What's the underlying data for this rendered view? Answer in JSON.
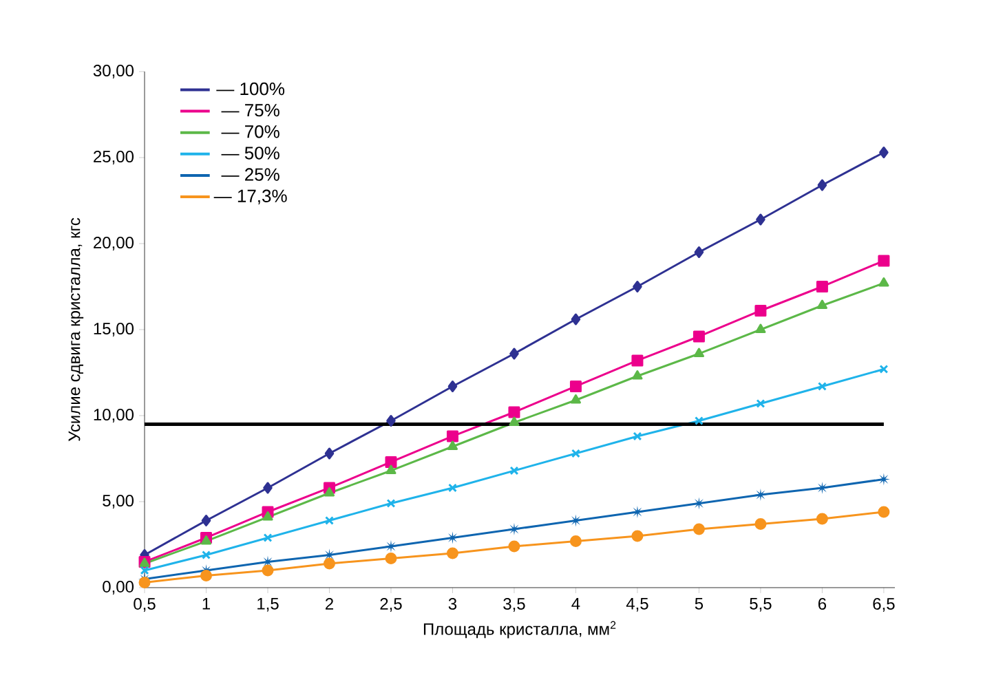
{
  "chart_data": {
    "type": "line",
    "xlabel": "Площадь кристалла, мм$^{2}$",
    "ylabel": "Усилие сдвига кристалла, кгс",
    "x": [
      0.5,
      1,
      1.5,
      2,
      2.5,
      3,
      3.5,
      4,
      4.5,
      5,
      5.5,
      6,
      6.5
    ],
    "series": [
      {
        "name": "— 100%",
        "color": "#2e3192",
        "marker": "diamond",
        "values": [
          1.9,
          3.9,
          5.8,
          7.8,
          9.7,
          11.7,
          13.6,
          15.6,
          17.5,
          19.5,
          21.4,
          23.4,
          25.3
        ]
      },
      {
        "name": "— 75%",
        "color": "#ec008c",
        "marker": "square",
        "values": [
          1.5,
          2.9,
          4.4,
          5.8,
          7.3,
          8.8,
          10.2,
          11.7,
          13.2,
          14.6,
          16.1,
          17.5,
          19.0
        ]
      },
      {
        "name": "— 70%",
        "color": "#5cb848",
        "marker": "triangle",
        "values": [
          1.4,
          2.7,
          4.1,
          5.5,
          6.8,
          8.2,
          9.6,
          10.9,
          12.3,
          13.6,
          15.0,
          16.4,
          17.7
        ]
      },
      {
        "name": "— 50%",
        "color": "#1fb3ea",
        "marker": "cross",
        "values": [
          1.0,
          1.9,
          2.9,
          3.9,
          4.9,
          5.8,
          6.8,
          7.8,
          8.8,
          9.7,
          10.7,
          11.7,
          12.7
        ]
      },
      {
        "name": "— 25%",
        "color": "#0e65b0",
        "marker": "star",
        "values": [
          0.5,
          1.0,
          1.5,
          1.9,
          2.4,
          2.9,
          3.4,
          3.9,
          4.4,
          4.9,
          5.4,
          5.8,
          6.3
        ]
      },
      {
        "name": "— 17,3%",
        "color": "#f7941d",
        "marker": "circle",
        "values": [
          0.3,
          0.7,
          1.0,
          1.4,
          1.7,
          2.0,
          2.4,
          2.7,
          3.0,
          3.4,
          3.7,
          4.0,
          4.4
        ]
      }
    ],
    "xlim": [
      0.5,
      6.5
    ],
    "xticks": [
      {
        "value": 0.5,
        "label": "0,5"
      },
      1,
      {
        "value": 1.5,
        "label": "1,5"
      },
      2,
      {
        "value": 2.5,
        "label": "2,5"
      },
      3,
      {
        "value": 3.5,
        "label": "3,5"
      },
      4,
      {
        "value": 4.5,
        "label": "4,5"
      },
      5,
      {
        "value": 5.5,
        "label": "5,5"
      },
      6,
      {
        "value": 6.5,
        "label": "6,5"
      }
    ],
    "ylim": [
      0,
      30
    ],
    "yticks": [
      {
        "value": 0,
        "label": "0,00"
      },
      {
        "value": 5,
        "label": "5,00"
      },
      {
        "value": 10,
        "label": "10,00"
      },
      {
        "value": 15,
        "label": "15,00"
      },
      {
        "value": 20,
        "label": "20,00"
      },
      {
        "value": 25,
        "label": "25,00"
      },
      {
        "value": 30,
        "label": "30,00"
      }
    ],
    "ref_lines": [
      {
        "axis": "y",
        "value": 9.5,
        "color": "#000000"
      }
    ],
    "grid": false,
    "legend": "top left",
    "line_style": "solid"
  }
}
